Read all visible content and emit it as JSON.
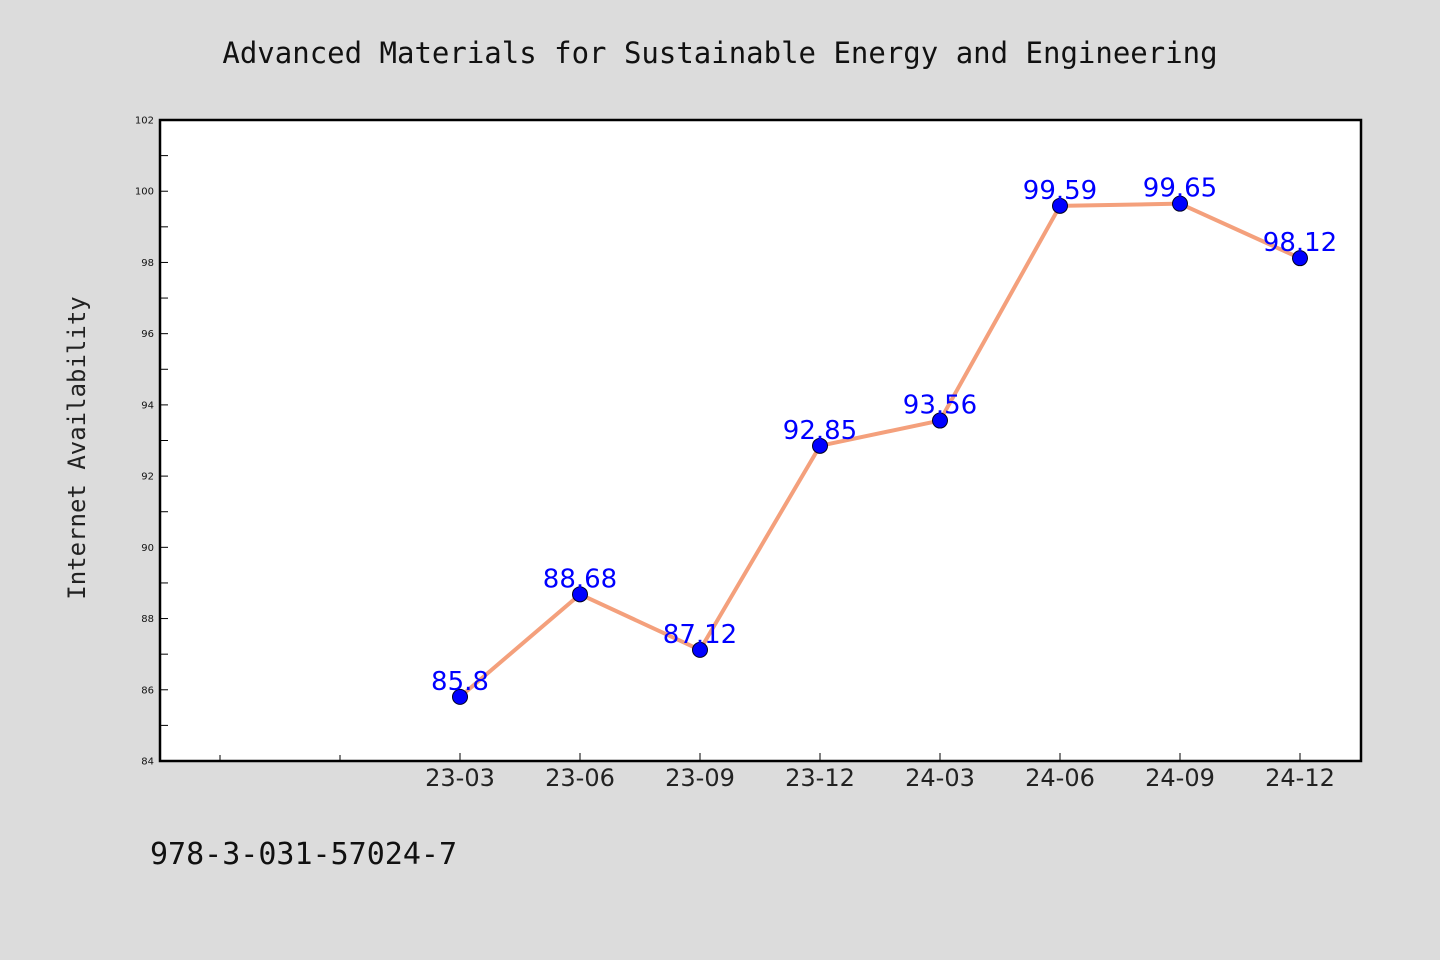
{
  "chart_data": {
    "type": "line",
    "title": "Advanced Materials for Sustainable Energy and Engineering",
    "ylabel": "Internet Availability",
    "xlabel": "",
    "categories": [
      "23-03",
      "23-06",
      "23-09",
      "23-12",
      "24-03",
      "24-06",
      "24-09",
      "24-12"
    ],
    "values": [
      85.8,
      88.68,
      87.12,
      92.85,
      93.56,
      99.59,
      99.65,
      98.12
    ],
    "data_labels": [
      "85.8",
      "88.68",
      "87.12",
      "92.85",
      "93.56",
      "99.59",
      "99.65",
      "98.12"
    ],
    "ylim": [
      84,
      102
    ],
    "yticks": [
      84,
      86,
      88,
      90,
      92,
      94,
      96,
      98,
      100,
      102
    ],
    "x_slots_before_data": 2,
    "grid": false,
    "line_color": "#f4a07c",
    "marker_color": "#0000ff",
    "label_color": "#0000ff"
  },
  "footer": {
    "isbn": "978-3-031-57024-7"
  }
}
